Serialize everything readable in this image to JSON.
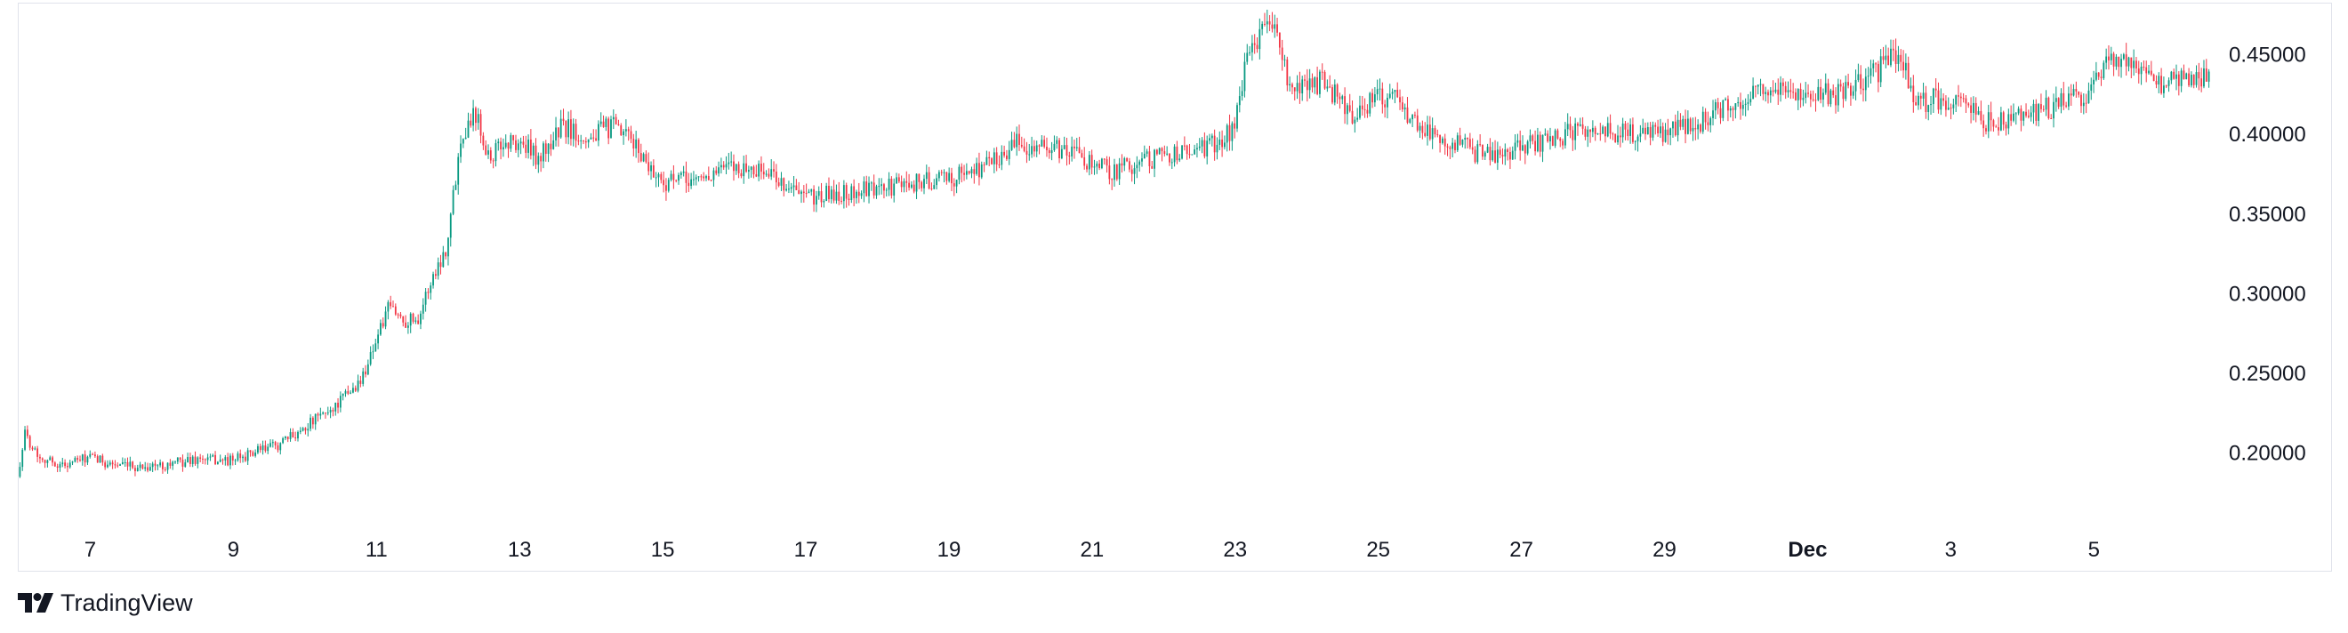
{
  "brand": {
    "name": "TradingView",
    "logo_icon": "tradingview-logo-icon"
  },
  "colors": {
    "up": "#089981",
    "down": "#f23645",
    "text": "#131722",
    "border": "#e0e3eb"
  },
  "chart_data": {
    "type": "candlestick",
    "title": "",
    "xlabel": "",
    "ylabel": "",
    "grid": false,
    "y_ticks": [
      "0.45000",
      "0.40000",
      "0.35000",
      "0.30000",
      "0.25000",
      "0.20000"
    ],
    "x_ticks": [
      {
        "label": "7",
        "day": 7,
        "bold": false
      },
      {
        "label": "9",
        "day": 9,
        "bold": false
      },
      {
        "label": "11",
        "day": 11,
        "bold": false
      },
      {
        "label": "13",
        "day": 13,
        "bold": false
      },
      {
        "label": "15",
        "day": 15,
        "bold": false
      },
      {
        "label": "17",
        "day": 17,
        "bold": false
      },
      {
        "label": "19",
        "day": 19,
        "bold": false
      },
      {
        "label": "21",
        "day": 21,
        "bold": false
      },
      {
        "label": "23",
        "day": 23,
        "bold": false
      },
      {
        "label": "25",
        "day": 25,
        "bold": false
      },
      {
        "label": "27",
        "day": 27,
        "bold": false
      },
      {
        "label": "29",
        "day": 29,
        "bold": false
      },
      {
        "label": "Dec",
        "day": 31,
        "bold": true
      },
      {
        "label": "3",
        "day": 33,
        "bold": false
      },
      {
        "label": "5",
        "day": 35,
        "bold": false
      }
    ],
    "ylim": [
      0.165,
      0.48
    ],
    "x_range_days": [
      6.0,
      36.6
    ],
    "price_path": [
      [
        6.0,
        0.185
      ],
      [
        6.1,
        0.212
      ],
      [
        6.3,
        0.198
      ],
      [
        6.6,
        0.192
      ],
      [
        7.0,
        0.197
      ],
      [
        7.5,
        0.191
      ],
      [
        8.0,
        0.192
      ],
      [
        8.5,
        0.196
      ],
      [
        9.0,
        0.195
      ],
      [
        9.3,
        0.2
      ],
      [
        9.7,
        0.206
      ],
      [
        10.0,
        0.216
      ],
      [
        10.4,
        0.228
      ],
      [
        10.8,
        0.245
      ],
      [
        11.0,
        0.27
      ],
      [
        11.2,
        0.292
      ],
      [
        11.4,
        0.283
      ],
      [
        11.6,
        0.285
      ],
      [
        11.8,
        0.31
      ],
      [
        12.0,
        0.33
      ],
      [
        12.2,
        0.4
      ],
      [
        12.4,
        0.415
      ],
      [
        12.6,
        0.385
      ],
      [
        12.8,
        0.395
      ],
      [
        13.0,
        0.395
      ],
      [
        13.3,
        0.385
      ],
      [
        13.6,
        0.405
      ],
      [
        14.0,
        0.398
      ],
      [
        14.3,
        0.405
      ],
      [
        14.6,
        0.395
      ],
      [
        15.0,
        0.37
      ],
      [
        15.5,
        0.372
      ],
      [
        16.0,
        0.38
      ],
      [
        16.5,
        0.376
      ],
      [
        17.0,
        0.36
      ],
      [
        17.5,
        0.363
      ],
      [
        18.0,
        0.365
      ],
      [
        18.5,
        0.37
      ],
      [
        19.0,
        0.372
      ],
      [
        19.5,
        0.38
      ],
      [
        20.0,
        0.395
      ],
      [
        20.3,
        0.392
      ],
      [
        20.7,
        0.389
      ],
      [
        21.0,
        0.383
      ],
      [
        21.3,
        0.377
      ],
      [
        21.7,
        0.383
      ],
      [
        22.0,
        0.387
      ],
      [
        22.5,
        0.39
      ],
      [
        22.8,
        0.395
      ],
      [
        23.0,
        0.405
      ],
      [
        23.2,
        0.45
      ],
      [
        23.4,
        0.468
      ],
      [
        23.6,
        0.465
      ],
      [
        23.8,
        0.422
      ],
      [
        24.0,
        0.432
      ],
      [
        24.3,
        0.432
      ],
      [
        24.6,
        0.412
      ],
      [
        24.9,
        0.42
      ],
      [
        25.2,
        0.425
      ],
      [
        25.5,
        0.41
      ],
      [
        25.8,
        0.4
      ],
      [
        26.1,
        0.395
      ],
      [
        26.4,
        0.388
      ],
      [
        26.7,
        0.385
      ],
      [
        27.0,
        0.392
      ],
      [
        27.5,
        0.398
      ],
      [
        28.0,
        0.405
      ],
      [
        28.5,
        0.4
      ],
      [
        29.0,
        0.4
      ],
      [
        29.5,
        0.408
      ],
      [
        30.0,
        0.42
      ],
      [
        30.5,
        0.428
      ],
      [
        31.0,
        0.427
      ],
      [
        31.5,
        0.425
      ],
      [
        32.0,
        0.44
      ],
      [
        32.3,
        0.452
      ],
      [
        32.5,
        0.42
      ],
      [
        32.8,
        0.422
      ],
      [
        33.2,
        0.42
      ],
      [
        33.6,
        0.405
      ],
      [
        34.0,
        0.412
      ],
      [
        34.5,
        0.418
      ],
      [
        35.0,
        0.428
      ],
      [
        35.2,
        0.448
      ],
      [
        35.6,
        0.44
      ],
      [
        36.0,
        0.432
      ],
      [
        36.6,
        0.435
      ]
    ]
  }
}
